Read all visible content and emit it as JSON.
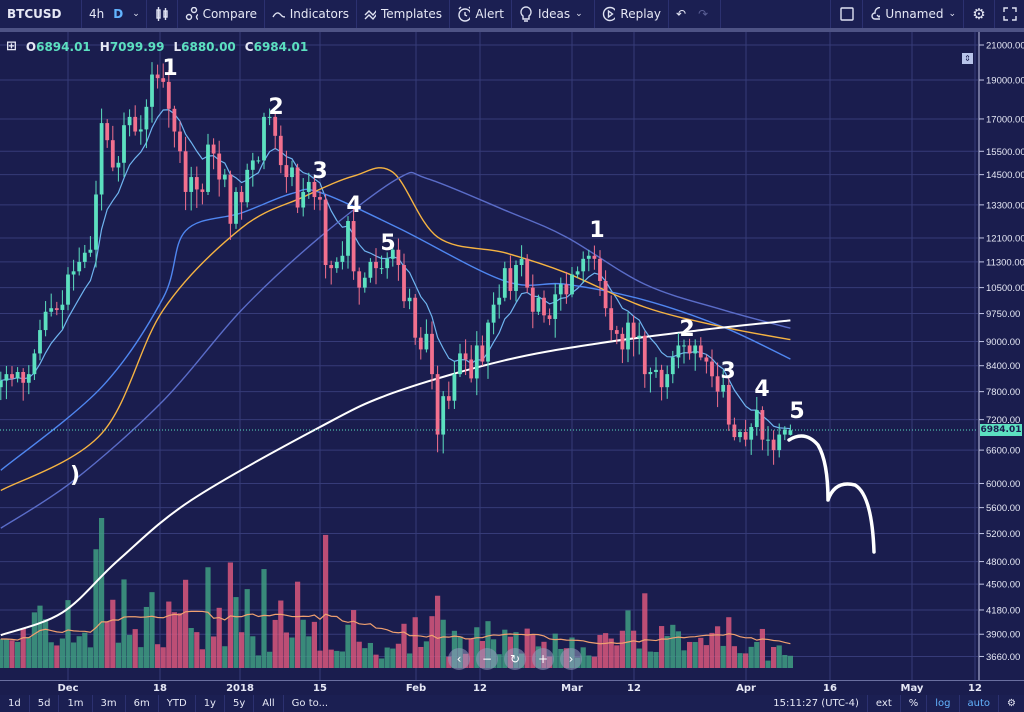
{
  "toolbar": {
    "symbol": "BTCUSD",
    "interval_4h": "4h",
    "interval_d": "D",
    "compare": "Compare",
    "indicators": "Indicators",
    "templates": "Templates",
    "alert": "Alert",
    "ideas": "Ideas",
    "replay": "Replay",
    "layout_name": "Unnamed"
  },
  "legend": {
    "o_label": "O",
    "o": "6894.01",
    "h_label": "H",
    "h": "7099.99",
    "l_label": "L",
    "l": "6880.00",
    "c_label": "C",
    "c": "6984.01"
  },
  "last_price_label": "6984.01",
  "colors": {
    "background": "#1a1d4e",
    "up": "#5ce0c0",
    "down": "#f2708e",
    "vol_up": "#3f9e82",
    "vol_down": "#d9577c",
    "ma_fast": "#6fb4f0",
    "ma_mid": "#4f86f0",
    "ma_50": "#f5b342",
    "ma_100": "#5a6cc8",
    "ma_200": "#ffffff",
    "annotation": "#ffffff"
  },
  "time_axis": [
    "Dec",
    "18",
    "2018",
    "15",
    "Feb",
    "12",
    "Mar",
    "12",
    "Apr",
    "16",
    "May",
    "12"
  ],
  "bottom_bar": {
    "ranges": [
      "1d",
      "5d",
      "1m",
      "3m",
      "6m",
      "YTD",
      "1y",
      "5y",
      "All"
    ],
    "goto": "Go to...",
    "clock": "15:11:27 (UTC-4)",
    "ext": "ext",
    "percent": "%",
    "log": "log",
    "auto": "auto"
  },
  "nav_buttons": [
    "‹",
    "−",
    "↻",
    "+",
    "›"
  ],
  "chart_data": {
    "type": "candlestick",
    "symbol": "BTCUSD",
    "interval": "D",
    "y_scale": "log",
    "grid": true,
    "price_ticks": [
      21000,
      19000,
      17000,
      15500,
      14500,
      13300,
      12100,
      11300,
      10500,
      9750,
      9000,
      8400,
      7800,
      7200,
      6600,
      6000,
      5600,
      5200,
      4800,
      4500,
      4180,
      3900,
      3660
    ],
    "start_date": "2017-11-19",
    "closes": [
      8050,
      8200,
      8100,
      8250,
      8000,
      8200,
      8700,
      9300,
      9800,
      9900,
      9850,
      10000,
      10900,
      11000,
      11300,
      11600,
      11700,
      13700,
      16800,
      16000,
      14800,
      15000,
      16700,
      17100,
      16400,
      16500,
      17600,
      19300,
      19100,
      18900,
      17500,
      16400,
      15500,
      13800,
      14400,
      13900,
      13800,
      15800,
      15400,
      14300,
      14500,
      12600,
      13800,
      13400,
      14700,
      15100,
      15100,
      17100,
      17100,
      16200,
      14900,
      14400,
      14800,
      13200,
      13800,
      14200,
      13600,
      13500,
      11200,
      11100,
      11300,
      11500,
      12700,
      11000,
      10500,
      10800,
      11300,
      11100,
      11100,
      11400,
      11700,
      11200,
      10100,
      10200,
      9100,
      8800,
      9200,
      8200,
      6900,
      7700,
      7600,
      8200,
      8700,
      8550,
      8100,
      8900,
      8500,
      9500,
      10000,
      10200,
      11100,
      10400,
      11200,
      11400,
      10500,
      9800,
      10200,
      9700,
      9600,
      10300,
      10600,
      10300,
      10900,
      11000,
      11400,
      11500,
      11400,
      10700,
      9900,
      9300,
      9200,
      8800,
      9500,
      9100,
      9150,
      8200,
      8250,
      8300,
      7900,
      8200,
      8600,
      8900,
      8900,
      8700,
      8900,
      8600,
      8500,
      8150,
      7800,
      7950,
      7100,
      6850,
      6950,
      6800,
      7050,
      7400,
      6800,
      6800,
      6600,
      6900,
      7000,
      6984.01
    ],
    "last_candle": {
      "open": 6894.01,
      "high": 7099.99,
      "low": 6880.0,
      "close": 6984.01
    },
    "moving_averages": [
      {
        "color_key": "ma_mid",
        "points": [
          [
            "2017-11-19",
            6230
          ],
          [
            "2017-12-07",
            7900
          ],
          [
            "2017-12-18",
            10200
          ],
          [
            "2017-12-22",
            12350
          ],
          [
            "2018-01-01",
            13000
          ],
          [
            "2018-01-10",
            13740
          ],
          [
            "2018-01-15",
            13780
          ],
          [
            "2018-01-29",
            12450
          ],
          [
            "2018-02-17",
            10700
          ],
          [
            "2018-02-28",
            10600
          ],
          [
            "2018-03-14",
            10130
          ],
          [
            "2018-03-28",
            9380
          ],
          [
            "2018-04-09",
            8560
          ]
        ]
      },
      {
        "color_key": "ma_50",
        "points": [
          [
            "2017-11-19",
            5880
          ],
          [
            "2017-12-07",
            6920
          ],
          [
            "2017-12-18",
            9850
          ],
          [
            "2018-01-01",
            12450
          ],
          [
            "2018-01-12",
            13600
          ],
          [
            "2018-01-21",
            14440
          ],
          [
            "2018-01-28",
            14600
          ],
          [
            "2018-02-05",
            12130
          ],
          [
            "2018-02-17",
            11600
          ],
          [
            "2018-02-28",
            10950
          ],
          [
            "2018-03-14",
            9930
          ],
          [
            "2018-03-28",
            9380
          ],
          [
            "2018-04-09",
            9050
          ]
        ]
      },
      {
        "color_key": "ma_100",
        "points": [
          [
            "2017-11-19",
            5280
          ],
          [
            "2017-12-02",
            6050
          ],
          [
            "2017-12-18",
            7600
          ],
          [
            "2018-01-01",
            9850
          ],
          [
            "2018-01-15",
            12130
          ],
          [
            "2018-01-29",
            14350
          ],
          [
            "2018-02-03",
            14350
          ],
          [
            "2018-02-17",
            13100
          ],
          [
            "2018-02-28",
            12130
          ],
          [
            "2018-03-14",
            10600
          ],
          [
            "2018-03-28",
            9850
          ],
          [
            "2018-04-09",
            9350
          ]
        ]
      },
      {
        "color_key": "ma_200",
        "points": [
          [
            "2017-11-19",
            3890
          ],
          [
            "2017-11-30",
            4150
          ],
          [
            "2017-12-10",
            4820
          ],
          [
            "2017-12-23",
            5720
          ],
          [
            "2018-01-15",
            7050
          ],
          [
            "2018-01-28",
            7770
          ],
          [
            "2018-02-17",
            8530
          ],
          [
            "2018-03-06",
            8960
          ],
          [
            "2018-03-24",
            9300
          ],
          [
            "2018-04-09",
            9560
          ]
        ]
      }
    ],
    "annotations": [
      "1",
      "2",
      "3",
      "4",
      "5",
      "1",
      "2",
      "3",
      "4",
      "5",
      ")"
    ]
  }
}
